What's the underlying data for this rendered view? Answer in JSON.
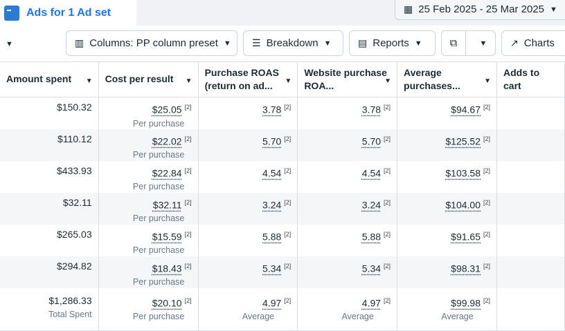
{
  "tab": {
    "title": "Ads for 1 Ad set",
    "icon": "ad-set-icon"
  },
  "date_range": "25 Feb 2025 - 25 Mar 2025",
  "toolbar": {
    "columns": "Columns: PP column preset",
    "breakdown": "Breakdown",
    "reports": "Reports",
    "charts": "Charts"
  },
  "columns": [
    "Amount spent",
    "Cost per result",
    "Purchase ROAS (return on ad...",
    "Website purchase ROA...",
    "Average purchases...",
    "Adds to cart"
  ],
  "rows": [
    {
      "amount": "$150.32",
      "cpr": "$25.05",
      "cpr_sub": "Per purchase",
      "roas": "3.78",
      "wroas": "3.78",
      "avg": "$94.67"
    },
    {
      "amount": "$110.12",
      "cpr": "$22.02",
      "cpr_sub": "Per purchase",
      "roas": "5.70",
      "wroas": "5.70",
      "avg": "$125.52"
    },
    {
      "amount": "$433.93",
      "cpr": "$22.84",
      "cpr_sub": "Per purchase",
      "roas": "4.54",
      "wroas": "4.54",
      "avg": "$103.58"
    },
    {
      "amount": "$32.11",
      "cpr": "$32.11",
      "cpr_sub": "Per purchase",
      "roas": "3.24",
      "wroas": "3.24",
      "avg": "$104.00"
    },
    {
      "amount": "$265.03",
      "cpr": "$15.59",
      "cpr_sub": "Per purchase",
      "roas": "5.88",
      "wroas": "5.88",
      "avg": "$91.65"
    },
    {
      "amount": "$294.82",
      "cpr": "$18.43",
      "cpr_sub": "Per purchase",
      "roas": "5.34",
      "wroas": "5.34",
      "avg": "$98.31"
    }
  ],
  "total": {
    "amount": "$1,286.33",
    "amount_sub": "Total Spent",
    "cpr": "$20.10",
    "cpr_sub": "Per purchase",
    "roas": "4.97",
    "roas_sub": "Average",
    "wroas": "4.97",
    "wroas_sub": "Average",
    "avg": "$99.98",
    "avg_sub": "Average"
  },
  "footnote": "[2]"
}
